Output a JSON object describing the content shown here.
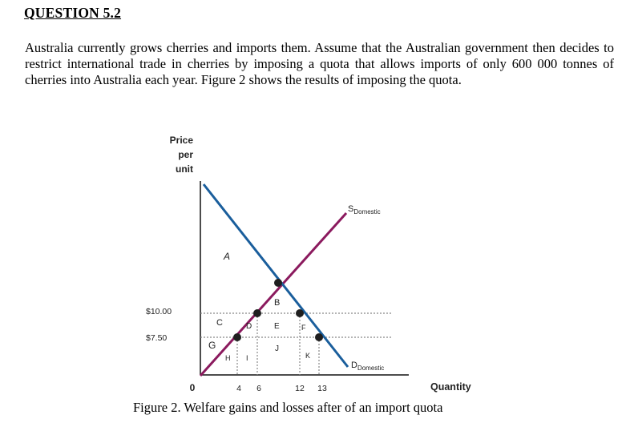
{
  "heading": "QUESTION 5.2",
  "intro": "Australia currently grows cherries and imports them. Assume that the Australian government then decides to restrict international trade in cherries by imposing a quota that allows imports of only 600 000 tonnes of cherries into Australia each year. Figure 2 shows the results of imposing the quota.",
  "figure": {
    "y_label_lines": [
      "Price",
      "per",
      "unit"
    ],
    "x_label": "Quantity",
    "origin": "0",
    "price_labels": {
      "p10": "$10.00",
      "p75": "$7.50"
    },
    "quantity_ticks": {
      "q4": "4",
      "q6": "6",
      "q12": "12",
      "q13": "13"
    },
    "regions": {
      "A": "A",
      "B": "B",
      "C": "C",
      "D": "D",
      "E": "E",
      "F": "F",
      "G": "G",
      "H": "H",
      "I": "I",
      "J": "J",
      "K": "K"
    },
    "supply": {
      "s": "S",
      "sub": "Domestic"
    },
    "demand": {
      "d": "D",
      "sub": "Domestic"
    },
    "colors": {
      "supply": "#8b1a5e",
      "demand": "#1a5e9c",
      "points": "#1f1f1f",
      "dotted": "#888888"
    }
  },
  "caption": "Figure 2. Welfare gains and losses after of an import quota"
}
